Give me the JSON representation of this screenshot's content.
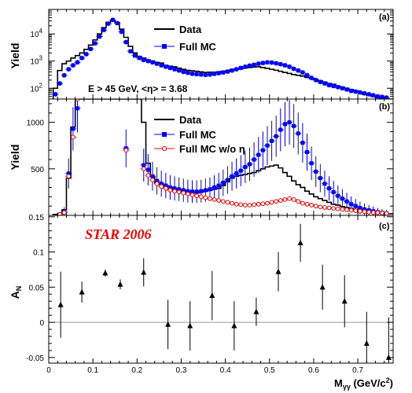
{
  "figure": {
    "xlabel": "M",
    "xlabel_sub": "γγ",
    "xlabel_unit": " (GeV/c",
    "xlabel_unit_sup": "2",
    "xlabel_unit_close": ")",
    "x_ticks": [
      "0",
      "0.1",
      "0.2",
      "0.3",
      "0.4",
      "0.5",
      "0.6",
      "0.7"
    ],
    "xlim": [
      0,
      0.78
    ]
  },
  "chart_data": [
    {
      "type": "line",
      "panel_label": "(a)",
      "ylabel": "Yield",
      "yscale": "log",
      "ylim": [
        40,
        80000
      ],
      "y_ticks": [
        {
          "v": 100,
          "b": "10",
          "e": "2"
        },
        {
          "v": 1000,
          "b": "10",
          "e": "3"
        },
        {
          "v": 10000,
          "b": "10",
          "e": "4"
        }
      ],
      "annotation": "E > 45 GeV, <η> = 3.68",
      "legend": [
        "Data",
        "Full MC"
      ],
      "colors": {
        "data": "#000000",
        "mc": "#0000ff"
      },
      "series": [
        {
          "name": "Data",
          "style": "step",
          "bin_edges": [
            0.01,
            0.02,
            0.03,
            0.04,
            0.05,
            0.06,
            0.07,
            0.08,
            0.09,
            0.1,
            0.11,
            0.12,
            0.13,
            0.14,
            0.15,
            0.16,
            0.17,
            0.18,
            0.19,
            0.2,
            0.21,
            0.22,
            0.23,
            0.24,
            0.25,
            0.26,
            0.27,
            0.28,
            0.29,
            0.3,
            0.31,
            0.32,
            0.33,
            0.34,
            0.35,
            0.36,
            0.37,
            0.38,
            0.39,
            0.4,
            0.41,
            0.42,
            0.43,
            0.44,
            0.45,
            0.46,
            0.47,
            0.48,
            0.49,
            0.5,
            0.51,
            0.52,
            0.53,
            0.54,
            0.55,
            0.56,
            0.57,
            0.58,
            0.59,
            0.6,
            0.61,
            0.62,
            0.63,
            0.64,
            0.65,
            0.66,
            0.67,
            0.68,
            0.69,
            0.7,
            0.71,
            0.72,
            0.73,
            0.74,
            0.75,
            0.76,
            0.77,
            0.78
          ],
          "values": [
            100,
            450,
            800,
            1000,
            1300,
            1600,
            2000,
            2700,
            3900,
            6000,
            10000,
            17000,
            27000,
            32000,
            26000,
            15000,
            7500,
            3500,
            2000,
            1500,
            1300,
            1100,
            1000,
            900,
            850,
            700,
            650,
            620,
            550,
            500,
            460,
            440,
            420,
            400,
            380,
            390,
            390,
            400,
            420,
            440,
            480,
            500,
            530,
            560,
            580,
            600,
            620,
            580,
            540,
            500,
            460,
            420,
            380,
            350,
            320,
            300,
            280,
            250,
            230,
            210,
            190,
            170,
            150,
            140,
            120,
            110,
            100,
            90,
            80,
            70,
            60,
            55,
            50,
            45,
            42,
            40,
            40
          ]
        },
        {
          "name": "Full MC",
          "style": "points",
          "x": [
            0.015,
            0.025,
            0.035,
            0.045,
            0.055,
            0.065,
            0.075,
            0.085,
            0.095,
            0.105,
            0.115,
            0.125,
            0.135,
            0.145,
            0.155,
            0.165,
            0.175,
            0.185,
            0.195,
            0.205,
            0.215,
            0.225,
            0.235,
            0.245,
            0.255,
            0.265,
            0.275,
            0.285,
            0.295,
            0.305,
            0.315,
            0.325,
            0.335,
            0.345,
            0.355,
            0.365,
            0.375,
            0.385,
            0.395,
            0.405,
            0.415,
            0.425,
            0.435,
            0.445,
            0.455,
            0.465,
            0.475,
            0.485,
            0.495,
            0.505,
            0.515,
            0.525,
            0.535,
            0.545,
            0.555,
            0.565,
            0.575,
            0.585,
            0.595,
            0.605,
            0.615,
            0.625,
            0.635,
            0.645,
            0.655,
            0.665,
            0.675,
            0.685,
            0.695,
            0.705,
            0.715,
            0.725,
            0.735,
            0.745,
            0.755,
            0.765
          ],
          "y": [
            60,
            150,
            300,
            500,
            700,
            900,
            1300,
            1800,
            2800,
            4500,
            8000,
            14000,
            24000,
            33000,
            25000,
            12000,
            5000,
            2300,
            1600,
            1300,
            1100,
            1000,
            900,
            800,
            700,
            620,
            560,
            500,
            450,
            400,
            370,
            340,
            330,
            320,
            310,
            320,
            340,
            360,
            380,
            410,
            450,
            500,
            560,
            620,
            680,
            730,
            800,
            850,
            900,
            880,
            830,
            770,
            700,
            620,
            520,
            450,
            380,
            300,
            240,
            200,
            170,
            150,
            130,
            120,
            110,
            100,
            90,
            80,
            75,
            70,
            65,
            60,
            55,
            50,
            48,
            45
          ]
        }
      ]
    },
    {
      "type": "line",
      "panel_label": "(b)",
      "ylabel": "Yield",
      "ylim": [
        0,
        1250
      ],
      "y_ticks": [
        {
          "v": 500,
          "t": "500"
        },
        {
          "v": 1000,
          "t": "1000"
        }
      ],
      "legend": [
        "Data",
        "Full MC",
        "Full MC w/o η"
      ],
      "colors": {
        "data": "#000000",
        "mc": "#0000ff",
        "mc_noeta": "#ff0000"
      },
      "series": [
        {
          "name": "Data",
          "style": "step",
          "bin_edges": [
            0.01,
            0.02,
            0.03,
            0.04,
            0.05,
            0.06,
            0.07,
            0.08,
            0.09,
            0.1,
            0.11,
            0.12,
            0.13,
            0.14,
            0.15,
            0.16,
            0.17,
            0.18,
            0.19,
            0.2,
            0.21,
            0.22,
            0.23,
            0.24,
            0.25,
            0.26,
            0.27,
            0.28,
            0.29,
            0.3,
            0.31,
            0.32,
            0.33,
            0.34,
            0.35,
            0.36,
            0.37,
            0.38,
            0.39,
            0.4,
            0.41,
            0.42,
            0.43,
            0.44,
            0.45,
            0.46,
            0.47,
            0.48,
            0.49,
            0.5,
            0.51,
            0.52,
            0.53,
            0.54,
            0.55,
            0.56,
            0.57,
            0.58,
            0.59,
            0.6,
            0.61,
            0.62,
            0.63,
            0.64,
            0.65,
            0.66,
            0.67,
            0.68,
            0.69,
            0.7,
            0.71,
            0.72,
            0.73,
            0.74,
            0.75,
            0.76,
            0.77,
            0.78
          ],
          "values": [
            10,
            20,
            60,
            400,
            950,
            1300,
            1300,
            1300,
            1300,
            1300,
            1300,
            1300,
            1300,
            1300,
            1300,
            1300,
            1300,
            1300,
            1300,
            1300,
            1000,
            560,
            420,
            350,
            330,
            310,
            290,
            280,
            270,
            260,
            250,
            240,
            240,
            250,
            260,
            270,
            280,
            290,
            320,
            360,
            400,
            420,
            430,
            440,
            450,
            460,
            480,
            500,
            520,
            530,
            540,
            510,
            460,
            420,
            370,
            330,
            300,
            260,
            230,
            200,
            180,
            160,
            140,
            120,
            110,
            95,
            85,
            75,
            65,
            55,
            48,
            42,
            35,
            30,
            25,
            20,
            18
          ]
        },
        {
          "name": "Full MC",
          "style": "points",
          "x": [
            0.025,
            0.035,
            0.045,
            0.055,
            0.065,
            0.175,
            0.215,
            0.225,
            0.235,
            0.245,
            0.255,
            0.265,
            0.275,
            0.285,
            0.295,
            0.305,
            0.315,
            0.325,
            0.335,
            0.345,
            0.355,
            0.365,
            0.375,
            0.385,
            0.395,
            0.405,
            0.415,
            0.425,
            0.435,
            0.445,
            0.455,
            0.465,
            0.475,
            0.485,
            0.495,
            0.505,
            0.515,
            0.525,
            0.535,
            0.545,
            0.555,
            0.565,
            0.575,
            0.585,
            0.595,
            0.605,
            0.615,
            0.625,
            0.635,
            0.645,
            0.655,
            0.665,
            0.675,
            0.685,
            0.695,
            0.705,
            0.715,
            0.725,
            0.735,
            0.745,
            0.755,
            0.765
          ],
          "y": [
            10,
            40,
            450,
            930,
            1150,
            720,
            540,
            490,
            420,
            370,
            340,
            320,
            300,
            290,
            280,
            270,
            260,
            255,
            255,
            260,
            270,
            280,
            300,
            320,
            350,
            380,
            420,
            450,
            480,
            520,
            550,
            600,
            650,
            700,
            750,
            800,
            850,
            920,
            980,
            1000,
            960,
            880,
            780,
            680,
            560,
            470,
            400,
            340,
            290,
            250,
            210,
            180,
            150,
            120,
            100,
            80,
            65,
            55,
            45,
            35,
            28,
            22
          ]
        },
        {
          "name": "Full MC w/o η",
          "style": "points_open",
          "x": [
            0.025,
            0.035,
            0.045,
            0.055,
            0.065,
            0.175,
            0.215,
            0.225,
            0.235,
            0.245,
            0.255,
            0.265,
            0.275,
            0.285,
            0.295,
            0.305,
            0.315,
            0.325,
            0.335,
            0.345,
            0.355,
            0.365,
            0.375,
            0.385,
            0.395,
            0.405,
            0.415,
            0.425,
            0.435,
            0.445,
            0.455,
            0.465,
            0.475,
            0.485,
            0.495,
            0.505,
            0.515,
            0.525,
            0.535,
            0.545,
            0.555,
            0.565,
            0.575,
            0.585,
            0.595,
            0.605,
            0.615,
            0.625,
            0.635,
            0.645,
            0.655,
            0.665,
            0.675,
            0.685,
            0.695,
            0.705,
            0.715,
            0.725,
            0.735,
            0.745,
            0.755,
            0.765
          ],
          "y": [
            10,
            30,
            420,
            840,
            1250,
            700,
            500,
            430,
            380,
            340,
            310,
            290,
            270,
            260,
            250,
            240,
            230,
            220,
            210,
            200,
            190,
            180,
            170,
            160,
            150,
            140,
            130,
            120,
            115,
            110,
            110,
            115,
            120,
            125,
            130,
            140,
            150,
            160,
            170,
            180,
            170,
            150,
            130,
            120,
            110,
            100,
            90,
            85,
            80,
            75,
            70,
            65,
            60,
            55,
            50,
            45,
            40,
            35,
            30,
            28,
            25,
            20
          ]
        }
      ]
    },
    {
      "type": "scatter",
      "panel_label": "(c)",
      "ylabel": "A",
      "ylabel_sub": "N",
      "ylim": [
        -0.058,
        0.152
      ],
      "y_ticks": [
        {
          "v": -0.05,
          "t": "-0.05"
        },
        {
          "v": 0,
          "t": "0"
        },
        {
          "v": 0.05,
          "t": "0.05"
        },
        {
          "v": 0.1,
          "t": "0.1"
        },
        {
          "v": 0.15,
          "t": "0.15"
        }
      ],
      "annotation": "STAR 2006",
      "reference_line": 0,
      "series": [
        {
          "name": "",
          "style": "triangles",
          "x": [
            0.027,
            0.075,
            0.128,
            0.162,
            0.215,
            0.27,
            0.32,
            0.37,
            0.42,
            0.47,
            0.52,
            0.57,
            0.62,
            0.67,
            0.72,
            0.77
          ],
          "y": [
            0.025,
            0.043,
            0.07,
            0.054,
            0.071,
            -0.003,
            -0.005,
            0.038,
            -0.005,
            0.015,
            0.072,
            0.113,
            0.05,
            0.03,
            -0.03,
            -0.05
          ],
          "yerr": [
            0.047,
            0.015,
            0.005,
            0.007,
            0.02,
            0.035,
            0.035,
            0.035,
            0.035,
            0.02,
            0.028,
            0.027,
            0.032,
            0.037,
            0.045,
            0.057
          ]
        }
      ]
    }
  ]
}
